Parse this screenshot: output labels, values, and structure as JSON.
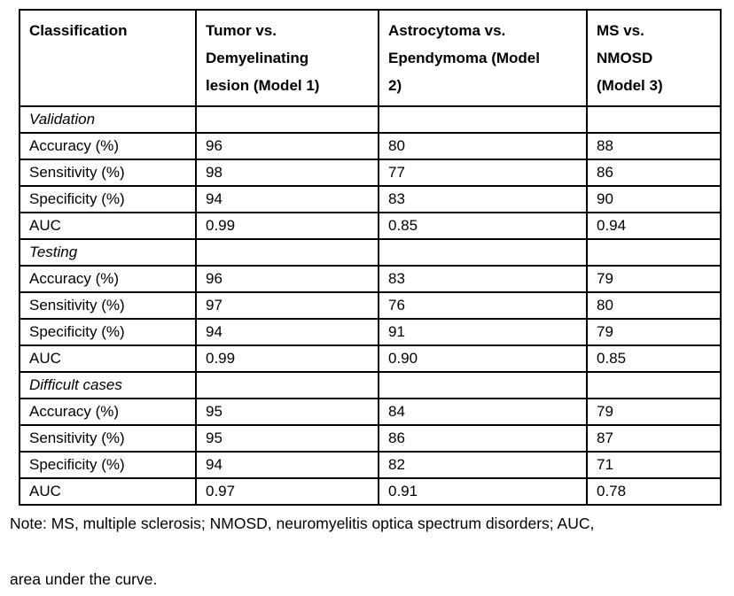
{
  "table": {
    "header": {
      "col0": "Classification",
      "col1": "Tumor vs.\nDemyelinating\nlesion (Model 1)",
      "col2": "Astrocytoma vs.\nEpendymoma (Model\n2)",
      "col3": "MS vs.\nNMOSD\n(Model 3)"
    },
    "sections": [
      {
        "label": "Validation",
        "rows": [
          {
            "metric": "Accuracy (%)",
            "values": [
              "96",
              "80",
              "88"
            ]
          },
          {
            "metric": "Sensitivity (%)",
            "values": [
              "98",
              "77",
              "86"
            ]
          },
          {
            "metric": "Specificity (%)",
            "values": [
              "94",
              "83",
              "90"
            ]
          },
          {
            "metric": "AUC",
            "values": [
              "0.99",
              "0.85",
              "0.94"
            ]
          }
        ]
      },
      {
        "label": "Testing",
        "rows": [
          {
            "metric": "Accuracy (%)",
            "values": [
              "96",
              "83",
              "79"
            ]
          },
          {
            "metric": "Sensitivity (%)",
            "values": [
              "97",
              "76",
              "80"
            ]
          },
          {
            "metric": "Specificity (%)",
            "values": [
              "94",
              "91",
              "79"
            ]
          },
          {
            "metric": "AUC",
            "values": [
              "0.99",
              "0.90",
              "0.85"
            ]
          }
        ]
      },
      {
        "label": "Difficult cases",
        "rows": [
          {
            "metric": "Accuracy (%)",
            "values": [
              "95",
              "84",
              "79"
            ]
          },
          {
            "metric": "Sensitivity (%)",
            "values": [
              "95",
              "86",
              "87"
            ]
          },
          {
            "metric": "Specificity (%)",
            "values": [
              "94",
              "82",
              "71"
            ]
          },
          {
            "metric": "AUC",
            "values": [
              "0.97",
              "0.91",
              "0.78"
            ]
          }
        ]
      }
    ]
  },
  "note": {
    "line1": "Note: MS, multiple sclerosis; NMOSD, neuromyelitis optica spectrum disorders; AUC,",
    "line2": "area under the curve."
  }
}
